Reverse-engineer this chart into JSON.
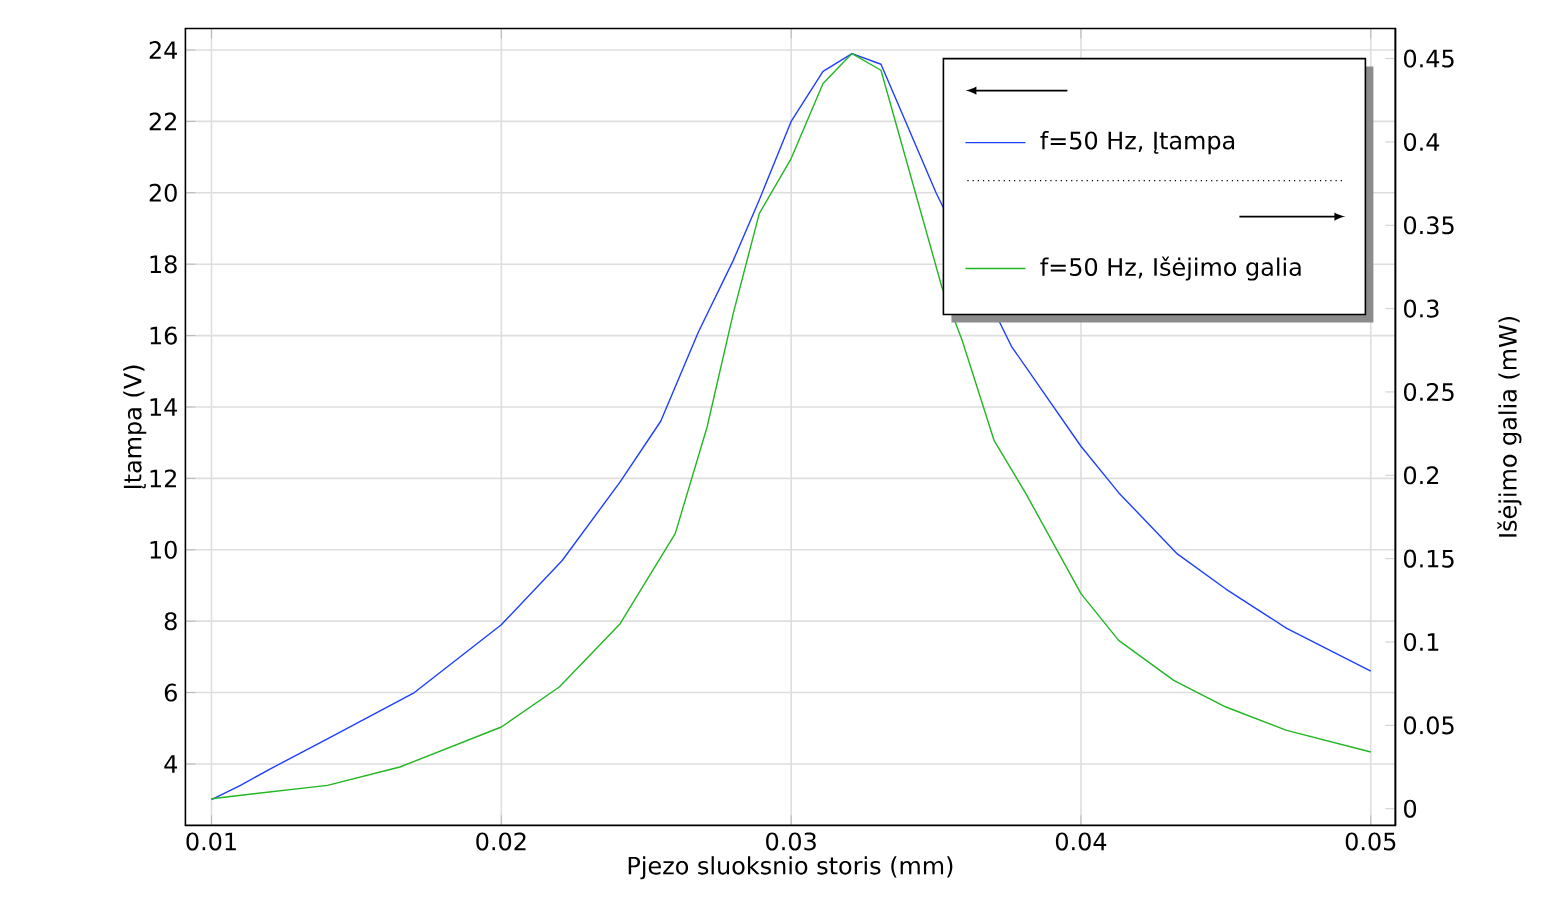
{
  "chart_data": {
    "type": "line",
    "xlabel": "Pjezo sluoksnio storis (mm)",
    "ylabel": "Įtampa (V)",
    "y2label": "Išėjimo galia (mW)",
    "xlim": [
      0.0091,
      0.05085
    ],
    "ylim": [
      2.28,
      24.6
    ],
    "y2lim": [
      -0.01,
      0.468
    ],
    "xticks": [
      0.01,
      0.02,
      0.03,
      0.04,
      0.05
    ],
    "yticks": [
      4,
      6,
      8,
      10,
      12,
      14,
      16,
      18,
      20,
      22,
      24
    ],
    "y2ticks": [
      0,
      0.05,
      0.1,
      0.15,
      0.2,
      0.25,
      0.3,
      0.35,
      0.4,
      0.45
    ],
    "grid": true,
    "legend": "top right",
    "series": [
      {
        "name": "f=50 Hz, Įtampa",
        "color": "#1f3fff",
        "axis": "y",
        "x": [
          0.01,
          0.011,
          0.012,
          0.014,
          0.017,
          0.02,
          0.0221,
          0.0241,
          0.0255,
          0.0268,
          0.028,
          0.0289,
          0.03,
          0.0311,
          0.0321,
          0.0331,
          0.034,
          0.035,
          0.0376,
          0.04,
          0.0413,
          0.0433,
          0.045,
          0.0471,
          0.05
        ],
        "values": [
          3.0,
          3.4,
          3.85,
          4.7,
          6.0,
          7.9,
          9.7,
          11.9,
          13.6,
          16.1,
          18.1,
          19.8,
          22.0,
          23.4,
          23.9,
          23.6,
          21.9,
          20.0,
          15.7,
          12.9,
          11.6,
          9.9,
          8.9,
          7.8,
          6.6
        ]
      },
      {
        "name": "f=50 Hz, Išėjimo galia",
        "color": "#22b622",
        "axis": "y2",
        "x": [
          0.01,
          0.014,
          0.0165,
          0.02,
          0.022,
          0.0241,
          0.026,
          0.0271,
          0.028,
          0.0289,
          0.03,
          0.0311,
          0.0321,
          0.0331,
          0.0352,
          0.0359,
          0.037,
          0.0381,
          0.04,
          0.0413,
          0.0432,
          0.045,
          0.0471,
          0.05
        ],
        "values": [
          0.006,
          0.014,
          0.025,
          0.049,
          0.073,
          0.111,
          0.165,
          0.229,
          0.297,
          0.357,
          0.39,
          0.435,
          0.453,
          0.443,
          0.313,
          0.281,
          0.221,
          0.189,
          0.129,
          0.101,
          0.077,
          0.061,
          0.047,
          0.034
        ]
      }
    ]
  }
}
